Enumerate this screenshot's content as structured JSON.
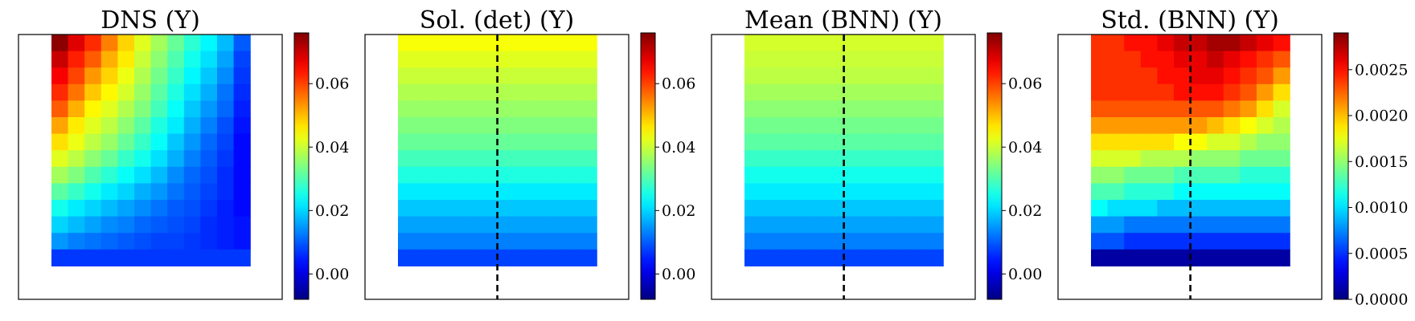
{
  "chart_data": [
    {
      "type": "heatmap",
      "title": "DNS (Y)",
      "grid_size": [
        12,
        14
      ],
      "colormap": "jet",
      "zlim": [
        -0.008,
        0.076
      ],
      "colorbar_ticks": [
        "0.00",
        "0.02",
        "0.04",
        "0.06"
      ],
      "colorbar_tick_values": [
        0.0,
        0.02,
        0.04,
        0.06
      ],
      "dashed_centerline": false,
      "values": [
        [
          0.075,
          0.068,
          0.062,
          0.055,
          0.048,
          0.042,
          0.037,
          0.032,
          0.027,
          0.023,
          0.018,
          0.01
        ],
        [
          0.07,
          0.063,
          0.058,
          0.051,
          0.046,
          0.04,
          0.035,
          0.03,
          0.025,
          0.021,
          0.016,
          0.008
        ],
        [
          0.066,
          0.06,
          0.053,
          0.048,
          0.043,
          0.038,
          0.033,
          0.028,
          0.023,
          0.019,
          0.014,
          0.007
        ],
        [
          0.062,
          0.056,
          0.049,
          0.045,
          0.041,
          0.036,
          0.031,
          0.026,
          0.021,
          0.017,
          0.012,
          0.006
        ],
        [
          0.058,
          0.051,
          0.045,
          0.042,
          0.038,
          0.034,
          0.029,
          0.024,
          0.019,
          0.015,
          0.011,
          0.005
        ],
        [
          0.052,
          0.046,
          0.042,
          0.039,
          0.035,
          0.031,
          0.026,
          0.022,
          0.017,
          0.013,
          0.009,
          0.004
        ],
        [
          0.047,
          0.043,
          0.039,
          0.036,
          0.032,
          0.028,
          0.024,
          0.019,
          0.015,
          0.011,
          0.008,
          0.003
        ],
        [
          0.042,
          0.039,
          0.035,
          0.032,
          0.028,
          0.025,
          0.021,
          0.017,
          0.013,
          0.01,
          0.007,
          0.003
        ],
        [
          0.037,
          0.034,
          0.03,
          0.027,
          0.024,
          0.021,
          0.018,
          0.014,
          0.011,
          0.009,
          0.006,
          0.003
        ],
        [
          0.031,
          0.028,
          0.025,
          0.022,
          0.02,
          0.017,
          0.015,
          0.012,
          0.01,
          0.008,
          0.006,
          0.003
        ],
        [
          0.025,
          0.022,
          0.02,
          0.018,
          0.016,
          0.014,
          0.012,
          0.01,
          0.009,
          0.007,
          0.005,
          0.003
        ],
        [
          0.02,
          0.018,
          0.016,
          0.014,
          0.013,
          0.011,
          0.01,
          0.009,
          0.008,
          0.006,
          0.005,
          0.004
        ],
        [
          0.015,
          0.013,
          0.012,
          0.011,
          0.01,
          0.009,
          0.008,
          0.008,
          0.007,
          0.006,
          0.005,
          0.004
        ],
        [
          0.007,
          0.007,
          0.007,
          0.007,
          0.007,
          0.007,
          0.007,
          0.007,
          0.007,
          0.007,
          0.007,
          0.007
        ]
      ]
    },
    {
      "type": "heatmap",
      "title": "Sol. (det) (Y)",
      "grid_size": [
        12,
        14
      ],
      "colormap": "jet",
      "zlim": [
        -0.008,
        0.076
      ],
      "colorbar_ticks": [
        "0.00",
        "0.02",
        "0.04",
        "0.06"
      ],
      "colorbar_tick_values": [
        0.0,
        0.02,
        0.04,
        0.06
      ],
      "dashed_centerline": true,
      "row_values": [
        0.044,
        0.042,
        0.04,
        0.038,
        0.036,
        0.034,
        0.032,
        0.029,
        0.026,
        0.022,
        0.019,
        0.016,
        0.013,
        0.008
      ]
    },
    {
      "type": "heatmap",
      "title": "Mean (BNN) (Y)",
      "grid_size": [
        12,
        14
      ],
      "colormap": "jet",
      "zlim": [
        -0.008,
        0.076
      ],
      "colorbar_ticks": [
        "0.00",
        "0.02",
        "0.04",
        "0.06"
      ],
      "colorbar_tick_values": [
        0.0,
        0.02,
        0.04,
        0.06
      ],
      "dashed_centerline": true,
      "row_values": [
        0.041,
        0.04,
        0.039,
        0.037,
        0.035,
        0.033,
        0.031,
        0.028,
        0.025,
        0.022,
        0.019,
        0.016,
        0.013,
        0.008
      ]
    },
    {
      "type": "heatmap",
      "title": "Std. (BNN) (Y)",
      "grid_size": [
        12,
        14
      ],
      "colormap": "jet",
      "zlim": [
        0.0,
        0.0029
      ],
      "colorbar_ticks": [
        "0.0000",
        "0.0005",
        "0.0010",
        "0.0015",
        "0.0020",
        "0.0025"
      ],
      "colorbar_tick_values": [
        0.0,
        0.0005,
        0.001,
        0.0015,
        0.002,
        0.0025
      ],
      "dashed_centerline": true,
      "values": [
        [
          0.0024,
          0.0024,
          0.0025,
          0.0025,
          0.0026,
          0.0027,
          0.0027,
          0.0028,
          0.0028,
          0.0027,
          0.0026,
          0.0025
        ],
        [
          0.0024,
          0.0024,
          0.0024,
          0.0025,
          0.0025,
          0.0026,
          0.0026,
          0.0027,
          0.0026,
          0.0025,
          0.0024,
          0.0023
        ],
        [
          0.0024,
          0.0024,
          0.0024,
          0.0024,
          0.0025,
          0.0025,
          0.0026,
          0.0026,
          0.0025,
          0.0024,
          0.0023,
          0.0021
        ],
        [
          0.0024,
          0.0024,
          0.0024,
          0.0024,
          0.0024,
          0.0025,
          0.0025,
          0.0025,
          0.0024,
          0.0023,
          0.0021,
          0.0019
        ],
        [
          0.0023,
          0.0023,
          0.0023,
          0.0023,
          0.0023,
          0.0023,
          0.0023,
          0.0023,
          0.0022,
          0.0021,
          0.0019,
          0.0017
        ],
        [
          0.0021,
          0.0021,
          0.0021,
          0.0021,
          0.0021,
          0.0021,
          0.0021,
          0.002,
          0.0019,
          0.0018,
          0.0017,
          0.0016
        ],
        [
          0.0019,
          0.0019,
          0.0019,
          0.0019,
          0.0019,
          0.0018,
          0.0018,
          0.0017,
          0.0017,
          0.0016,
          0.0015,
          0.0015
        ],
        [
          0.0017,
          0.0017,
          0.0017,
          0.0016,
          0.0016,
          0.0016,
          0.0015,
          0.0015,
          0.0015,
          0.0014,
          0.0014,
          0.0014
        ],
        [
          0.0015,
          0.0015,
          0.0014,
          0.0014,
          0.0014,
          0.0013,
          0.0013,
          0.0013,
          0.0013,
          0.0012,
          0.0012,
          0.0012
        ],
        [
          0.0013,
          0.0013,
          0.0012,
          0.0012,
          0.0012,
          0.0011,
          0.0011,
          0.0011,
          0.0011,
          0.0011,
          0.0011,
          0.0011
        ],
        [
          0.0011,
          0.001,
          0.001,
          0.001,
          0.0009,
          0.0009,
          0.0009,
          0.0009,
          0.0009,
          0.0009,
          0.0009,
          0.0009
        ],
        [
          0.0008,
          0.0008,
          0.0007,
          0.0007,
          0.0007,
          0.0007,
          0.0007,
          0.0007,
          0.0007,
          0.0007,
          0.0007,
          0.0007
        ],
        [
          0.0006,
          0.0006,
          0.0005,
          0.0005,
          0.0005,
          0.0005,
          0.0005,
          0.0005,
          0.0005,
          0.0005,
          0.0005,
          0.0005
        ],
        [
          0.0001,
          0.0001,
          0.0001,
          0.0001,
          0.0001,
          0.0001,
          0.0001,
          0.0001,
          0.0001,
          0.0001,
          0.0001,
          0.0001
        ]
      ]
    }
  ]
}
